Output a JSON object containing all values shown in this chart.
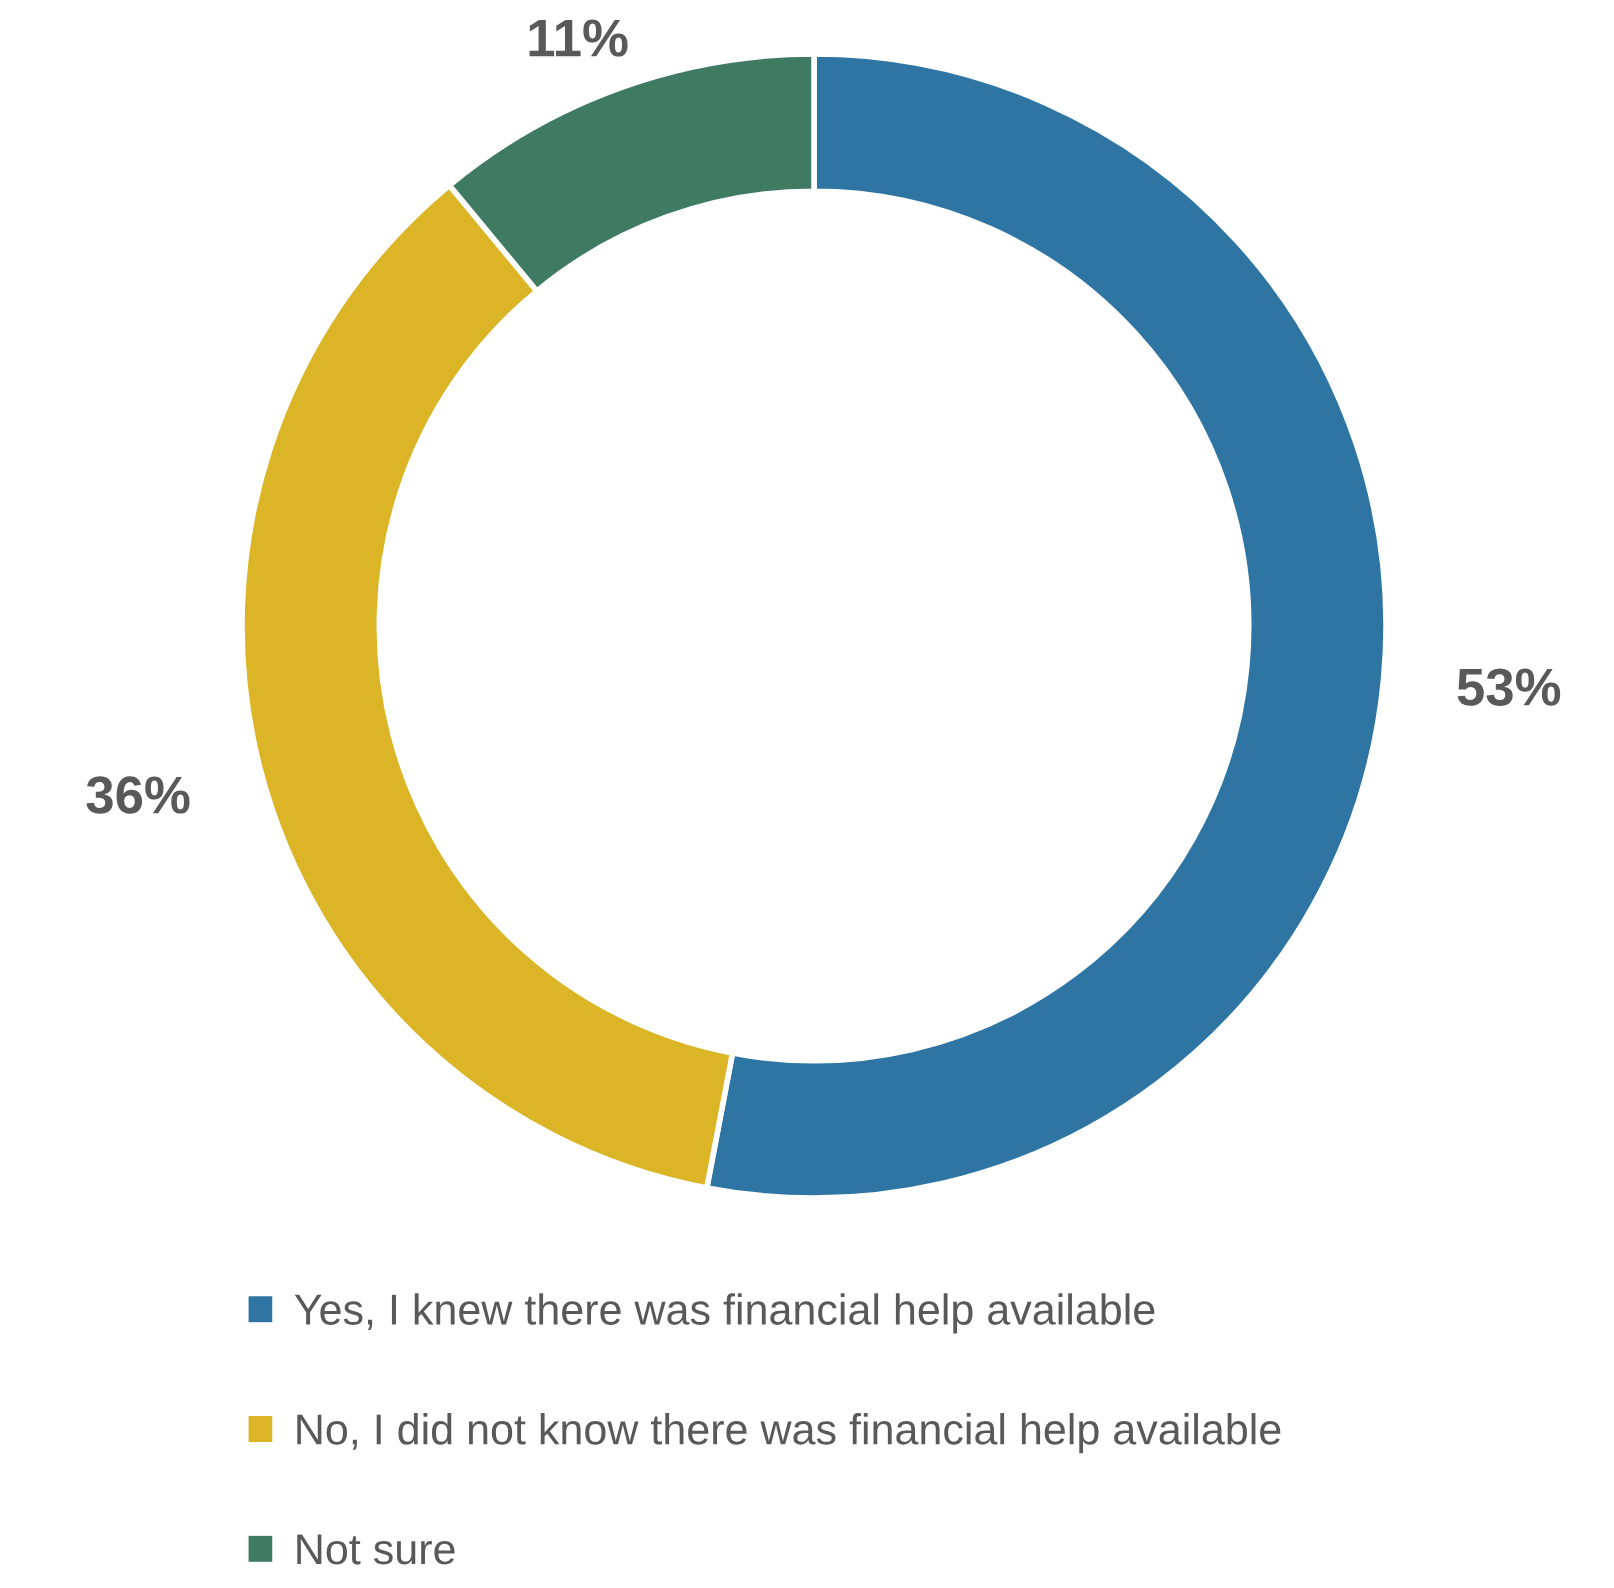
{
  "chart_data": {
    "type": "donut",
    "categories": [
      "Yes, I knew there was financial help available",
      "No, I did not know there was financial help available",
      "Not sure"
    ],
    "values": [
      53,
      36,
      11
    ],
    "colors": [
      "#2e75a4",
      "#dbb526",
      "#3f7a62"
    ],
    "value_labels": [
      "53%",
      "36%",
      "11%"
    ],
    "legend": "bottom"
  }
}
